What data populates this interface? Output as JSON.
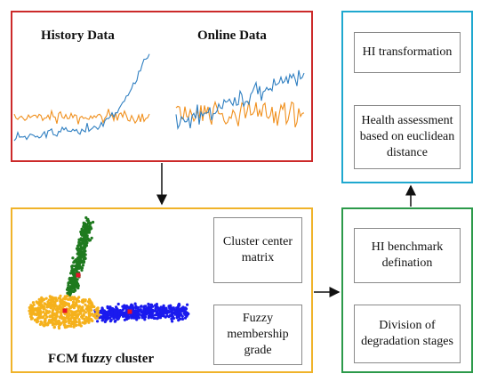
{
  "data_panel": {
    "history_title": "History Data",
    "online_title": "Online Data",
    "series_colors": {
      "degradation": "#2f7fc1",
      "baseline": "#f0901e"
    },
    "border_color": "#cc2a2a"
  },
  "fcm_panel": {
    "caption": "FCM fuzzy cluster",
    "box_center_matrix": "Cluster center\nmatrix",
    "box_membership": "Fuzzy\nmembership\ngrade",
    "cluster_colors": [
      "#1f7a1f",
      "#f5b11c",
      "#1a1aee"
    ],
    "center_color": "#e8132a",
    "border_color": "#f0b32a"
  },
  "hi_panel": {
    "box_benchmark": "HI benchmark\ndefination",
    "box_division": "Division of\ndegradation stages",
    "border_color": "#2c9a4a"
  },
  "output_panel": {
    "box_transform": "HI transformation",
    "box_assessment": "Health assessment\nbased on euclidean\ndistance",
    "border_color": "#1fa8cf"
  }
}
